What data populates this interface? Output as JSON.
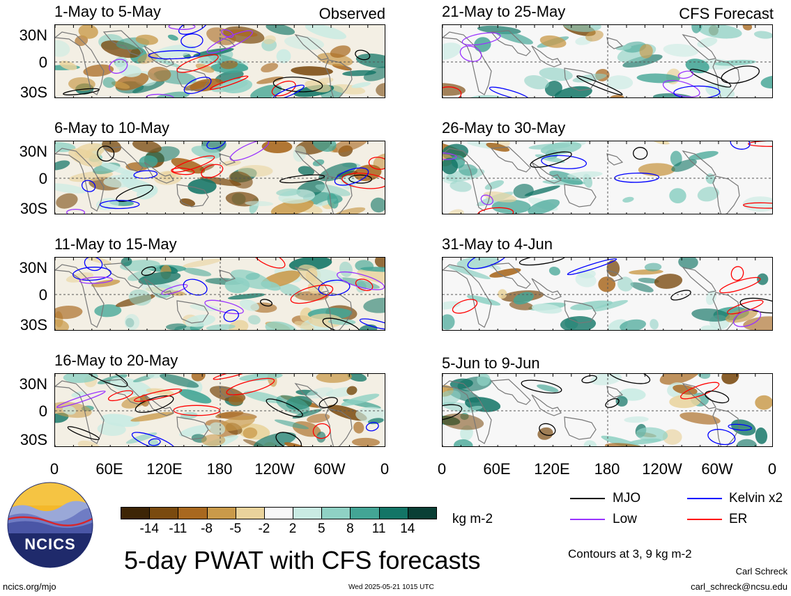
{
  "panels": {
    "left": [
      {
        "title": "1-May to 5-May"
      },
      {
        "title": "6-May to 10-May"
      },
      {
        "title": "11-May to 15-May"
      },
      {
        "title": "16-May to 20-May"
      }
    ],
    "right": [
      {
        "title": "21-May to 25-May"
      },
      {
        "title": "26-May to 30-May"
      },
      {
        "title": "31-May to 4-Jun"
      },
      {
        "title": "5-Jun to 9-Jun"
      }
    ],
    "left_header": "Observed",
    "right_header": "CFS Forecast"
  },
  "axes": {
    "lat_labels": [
      "30N",
      "0",
      "30S"
    ],
    "lon_labels": [
      "0",
      "60E",
      "120E",
      "180",
      "120W",
      "60W",
      "0"
    ]
  },
  "colorbar": {
    "labels": [
      "-14",
      "-11",
      "-8",
      "-5",
      "-2",
      "2",
      "5",
      "8",
      "11",
      "14"
    ],
    "colors": [
      "#3d2506",
      "#7a4a0f",
      "#a8681f",
      "#c99a4a",
      "#e9d39c",
      "#f7f7f7",
      "#c9ebe3",
      "#8fd1c4",
      "#43a595",
      "#137566",
      "#0a3f35"
    ],
    "units": "kg m-2"
  },
  "legend": {
    "items": [
      {
        "label": "MJO",
        "color": "#000000"
      },
      {
        "label": "Kelvin x2",
        "color": "#0000ff"
      },
      {
        "label": "Low",
        "color": "#9933ff"
      },
      {
        "label": "ER",
        "color": "#ff0000"
      }
    ],
    "contours_note": "Contours at 3, 9 kg m-2"
  },
  "logo": {
    "text": "NCICS"
  },
  "main_title": "5-day PWAT with CFS forecasts",
  "footer": {
    "site": "ncics.org/mjo",
    "timestamp": "Wed 2025-05-21 1015 UTC",
    "author": "Carl Schreck",
    "email": "carl_schreck@ncsu.edu"
  }
}
